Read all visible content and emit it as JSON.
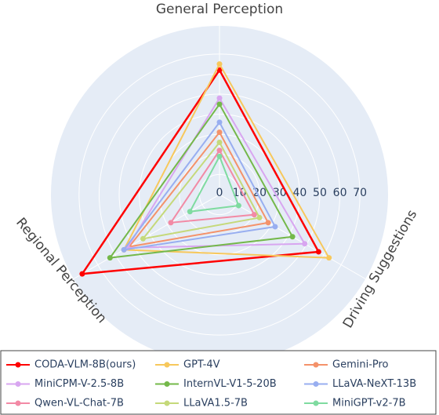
{
  "chart_data": {
    "type": "radar",
    "axes": [
      "General Perception",
      "Driving Suggestions",
      "Regional Perception"
    ],
    "rlim": [
      0,
      84
    ],
    "rticks": [
      0,
      10,
      20,
      30,
      40,
      50,
      60,
      70
    ],
    "grid": true,
    "series": [
      {
        "name": "CODA-VLM-8B(ours)",
        "color": "#ff0000",
        "values": [
          62,
          57,
          79
        ]
      },
      {
        "name": "GPT-4V",
        "color": "#f7c85c",
        "values": [
          65,
          63,
          55
        ]
      },
      {
        "name": "Gemini-Pro",
        "color": "#f4926a",
        "values": [
          31,
          28,
          52
        ]
      },
      {
        "name": "MiniCPM-V-2.5-8B",
        "color": "#d8a6f0",
        "values": [
          48,
          49,
          53
        ]
      },
      {
        "name": "InternVL-V1-5-20B",
        "color": "#74b84a",
        "values": [
          45,
          42,
          63
        ]
      },
      {
        "name": "LLaVA-NeXT-13B",
        "color": "#98aef0",
        "values": [
          36,
          32,
          55
        ]
      },
      {
        "name": "Qwen-VL-Chat-7B",
        "color": "#f28aa5",
        "values": [
          22,
          20,
          28
        ]
      },
      {
        "name": "LLaVA1.5-7B",
        "color": "#c5d97a",
        "values": [
          26,
          23,
          44
        ]
      },
      {
        "name": "MiniGPT-v2-7B",
        "color": "#7fdba0",
        "values": [
          19,
          11,
          17
        ]
      }
    ]
  }
}
